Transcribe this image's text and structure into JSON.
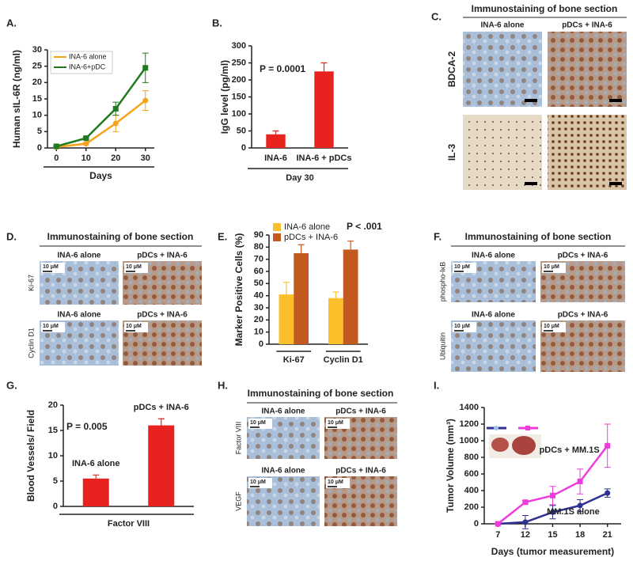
{
  "panel_labels": [
    "A.",
    "B.",
    "C.",
    "D.",
    "E.",
    "F.",
    "G.",
    "H.",
    "I."
  ],
  "chart_data": [
    {
      "type": "line",
      "ylabel": "Human sIL-6R (ng/ml)",
      "xlabel": "Days",
      "x": [
        0,
        10,
        20,
        30
      ],
      "xlim": [
        -3,
        33
      ],
      "xticks": [
        0,
        10,
        20,
        30
      ],
      "ylim": [
        0,
        30
      ],
      "yticks": [
        0,
        5,
        10,
        15,
        20,
        25,
        30
      ],
      "legend": "upper left",
      "series": [
        {
          "name": "INA-6 alone",
          "color": "#f7a21b",
          "marker": "circle",
          "values": [
            0.3,
            1.3,
            7.5,
            14.5
          ],
          "errors": [
            0.2,
            0.3,
            2.5,
            3
          ]
        },
        {
          "name": "INA-6+pDC",
          "color": "#1f7a1f",
          "marker": "square",
          "values": [
            0.5,
            3,
            12,
            24.5
          ],
          "errors": [
            0.2,
            0.3,
            2,
            4.5
          ]
        }
      ]
    },
    {
      "type": "bar",
      "ylabel": "IgG level (pg/ml)",
      "xlabel": "Day 30",
      "annotation": "P = 0.0001",
      "categories": [
        "INA-6",
        "INA-6 + pDCs"
      ],
      "values": [
        40,
        225
      ],
      "errors": [
        10,
        25
      ],
      "color": "#e8231f",
      "ylim": [
        0,
        300
      ],
      "yticks": [
        0,
        50,
        100,
        150,
        200,
        250,
        300
      ],
      "label_position": "below"
    },
    {
      "type": "grouped_bar",
      "ylabel": "Marker Positive Cells (%)",
      "annotation": "P < .001",
      "categories": [
        "Ki-67",
        "Cyclin D1"
      ],
      "legend": "upper left",
      "series": [
        {
          "name": "INA-6 alone",
          "color": "#fbbf2c",
          "values": [
            41,
            38
          ],
          "errors": [
            10,
            5
          ]
        },
        {
          "name": "pDCs + INA-6",
          "color": "#c4591f",
          "values": [
            75,
            78
          ],
          "errors": [
            7,
            7
          ]
        }
      ],
      "ylim": [
        0,
        90
      ],
      "yticks": [
        0,
        10,
        20,
        30,
        40,
        50,
        60,
        70,
        80,
        90
      ]
    },
    {
      "type": "bar",
      "ylabel": "Blood Vessels/ Field",
      "xlabel": "Factor VIII",
      "annotation": "P = 0.005",
      "categories": [
        "INA-6 alone",
        "pDCs + INA-6"
      ],
      "values": [
        5.5,
        16
      ],
      "errors": [
        0.7,
        1.3
      ],
      "color": "#e8231f",
      "ylim": [
        0,
        20
      ],
      "yticks": [
        0,
        5,
        10,
        15,
        20
      ],
      "label_position": "above"
    },
    {
      "type": "line",
      "ylabel": "Tumor Volume (mm³)",
      "xlabel": "Days (tumor measurement)",
      "categories": [
        "7",
        "12",
        "15",
        "18",
        "21"
      ],
      "legend": "line end",
      "ylim": [
        0,
        1400
      ],
      "yticks": [
        0,
        200,
        400,
        600,
        800,
        1000,
        1200,
        1400
      ],
      "series": [
        {
          "name": "MM.1S alone",
          "color": "#2e3192",
          "marker": "circle",
          "values": [
            0,
            20,
            140,
            220,
            370
          ],
          "errors": [
            0,
            80,
            80,
            70,
            50
          ]
        },
        {
          "name": "pDCs + MM.1S",
          "color": "#ee3bdc",
          "marker": "square",
          "values": [
            0,
            260,
            340,
            510,
            940
          ],
          "errors": [
            0,
            20,
            110,
            150,
            260
          ]
        }
      ]
    }
  ],
  "image_panels": [
    {
      "title": "Immunostaining of bone section",
      "columns": [
        "INA-6 alone",
        "pDCs + INA-6"
      ],
      "rows": [
        "BDCA-2",
        "IL-3"
      ],
      "column_headers": "top"
    },
    {
      "title": "Immunostaining of bone section",
      "columns": [
        "INA-6 alone",
        "pDCs + INA-6"
      ],
      "rows": [
        "Ki-67",
        "Cyclin D1"
      ],
      "column_headers": "each row",
      "scale_label": "10 μM"
    },
    {
      "title": "Immunostaining of bone section",
      "columns": [
        "INA-6 alone",
        "pDCs + INA-6"
      ],
      "rows": [
        "phospho-IκB",
        "Ubiquitin"
      ],
      "column_headers": "each row",
      "scale_label": "10 μM"
    },
    {
      "title": "Immunostaining of bone section",
      "columns": [
        "INA-6 alone",
        "pDCs + INA-6"
      ],
      "rows": [
        "Factor VIII",
        "VEGF"
      ],
      "column_headers": "each row",
      "scale_label": "10 μM"
    }
  ]
}
